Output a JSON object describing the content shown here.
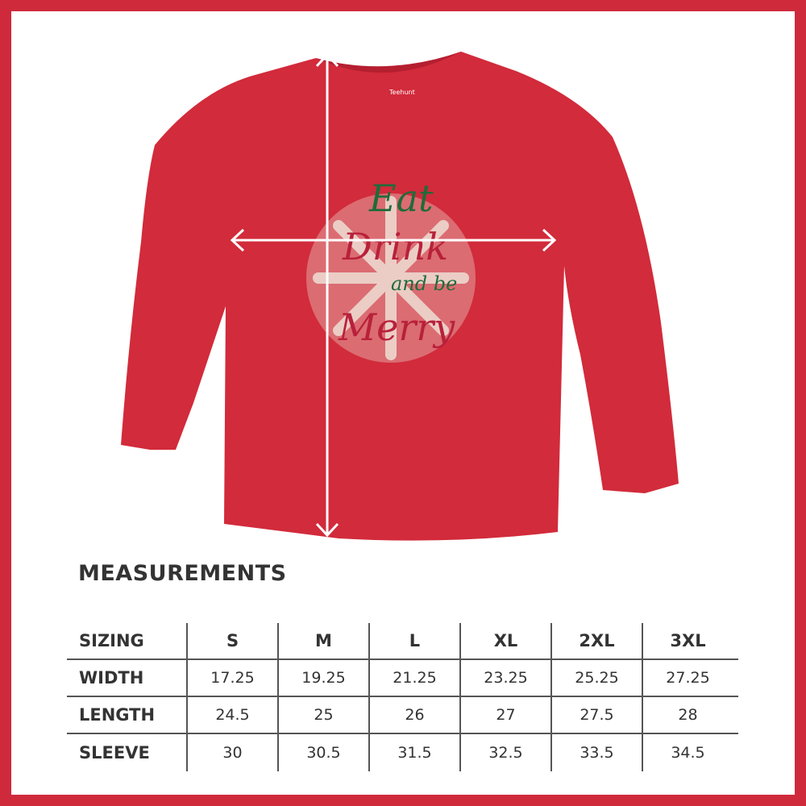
{
  "colors": {
    "frame": "#cf2a3c",
    "shirt": "#d22b3b",
    "print_green": "#1f6b3a",
    "print_cream": "#efe6da",
    "text": "#333333"
  },
  "shirt": {
    "tag_brand": "Teehunt",
    "print_text": [
      "Eat",
      "Drink",
      "and be",
      "Merry"
    ]
  },
  "title": "MEASUREMENTS",
  "table": {
    "header": [
      "SIZING",
      "S",
      "M",
      "L",
      "XL",
      "2XL",
      "3XL"
    ],
    "rows": [
      {
        "label": "WIDTH",
        "values": [
          "17.25",
          "19.25",
          "21.25",
          "23.25",
          "25.25",
          "27.25"
        ]
      },
      {
        "label": "LENGTH",
        "values": [
          "24.5",
          "25",
          "26",
          "27",
          "27.5",
          "28"
        ]
      },
      {
        "label": "SLEEVE",
        "values": [
          "30",
          "30.5",
          "31.5",
          "32.5",
          "33.5",
          "34.5"
        ]
      }
    ]
  }
}
